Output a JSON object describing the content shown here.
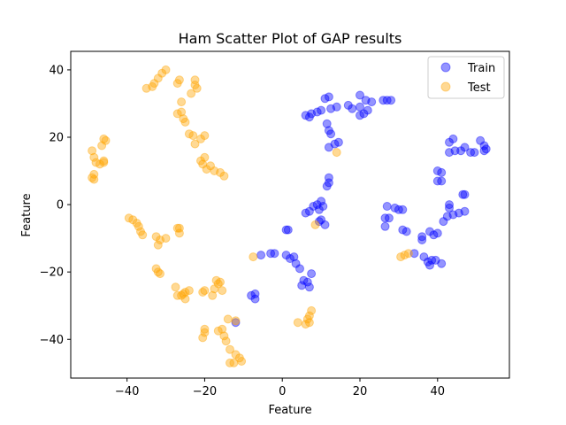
{
  "chart_data": {
    "type": "scatter",
    "title": "Ham Scatter Plot of GAP results",
    "xlabel": "Feature",
    "ylabel": "Feature",
    "xlim": [
      -54.5,
      58.5
    ],
    "ylim": [
      -51.5,
      45.5
    ],
    "xticks": [
      -40,
      -20,
      0,
      20,
      40
    ],
    "yticks": [
      -40,
      -20,
      0,
      20,
      40
    ],
    "x_tick_labels": [
      "−40",
      "−20",
      "0",
      "20",
      "40"
    ],
    "y_tick_labels": [
      "−40",
      "−20",
      "0",
      "20",
      "40"
    ],
    "grid": false,
    "legend_position": "top-right",
    "series": [
      {
        "name": "Train",
        "color": "#0000ff",
        "points": [
          [
            6.0,
            26.5
          ],
          [
            7.5,
            27.0
          ],
          [
            7.0,
            26.0
          ],
          [
            9.0,
            27.5
          ],
          [
            10.0,
            28.0
          ],
          [
            11.0,
            31.5
          ],
          [
            12.0,
            32.0
          ],
          [
            12.5,
            28.5
          ],
          [
            14.0,
            29.0
          ],
          [
            11.5,
            24.0
          ],
          [
            12.0,
            22.0
          ],
          [
            12.5,
            21.0
          ],
          [
            12.0,
            17.0
          ],
          [
            13.5,
            18.0
          ],
          [
            14.5,
            18.5
          ],
          [
            17.0,
            29.5
          ],
          [
            18.0,
            28.5
          ],
          [
            20.0,
            32.5
          ],
          [
            20.0,
            29.0
          ],
          [
            21.5,
            31.0
          ],
          [
            23.0,
            30.5
          ],
          [
            20.0,
            26.5
          ],
          [
            21.0,
            27.0
          ],
          [
            22.0,
            28.0
          ],
          [
            26.0,
            31.0
          ],
          [
            27.0,
            31.0
          ],
          [
            28.0,
            31.0
          ],
          [
            43.0,
            18.5
          ],
          [
            44.0,
            19.5
          ],
          [
            43.0,
            15.5
          ],
          [
            44.5,
            16.0
          ],
          [
            46.0,
            16.0
          ],
          [
            47.0,
            17.0
          ],
          [
            48.5,
            15.5
          ],
          [
            49.5,
            15.5
          ],
          [
            51.0,
            19.0
          ],
          [
            52.0,
            17.5
          ],
          [
            52.5,
            16.5
          ],
          [
            52.0,
            16.0
          ],
          [
            40.0,
            10.0
          ],
          [
            41.0,
            9.5
          ],
          [
            40.0,
            7.0
          ],
          [
            41.0,
            7.0
          ],
          [
            46.5,
            3.0
          ],
          [
            47.0,
            3.0
          ],
          [
            43.0,
            0.0
          ],
          [
            43.0,
            -1.0
          ],
          [
            42.5,
            -3.5
          ],
          [
            41.5,
            -5.0
          ],
          [
            44.0,
            -3.0
          ],
          [
            45.5,
            -2.5
          ],
          [
            47.0,
            -2.0
          ],
          [
            27.0,
            -0.5
          ],
          [
            29.0,
            -1.0
          ],
          [
            30.0,
            -1.5
          ],
          [
            31.0,
            -1.5
          ],
          [
            26.5,
            -4.0
          ],
          [
            27.5,
            -4.0
          ],
          [
            26.5,
            -6.5
          ],
          [
            31.0,
            -7.5
          ],
          [
            32.0,
            -8.0
          ],
          [
            34.0,
            -14.5
          ],
          [
            36.0,
            -9.5
          ],
          [
            36.0,
            -10.5
          ],
          [
            38.0,
            -8.0
          ],
          [
            39.0,
            -9.0
          ],
          [
            40.0,
            -8.5
          ],
          [
            36.5,
            -15.5
          ],
          [
            37.5,
            -17.0
          ],
          [
            38.0,
            -18.0
          ],
          [
            38.5,
            -16.5
          ],
          [
            39.5,
            -16.5
          ],
          [
            41.0,
            -17.5
          ],
          [
            12.0,
            8.0
          ],
          [
            12.0,
            6.5
          ],
          [
            11.5,
            5.5
          ],
          [
            9.0,
            0.0
          ],
          [
            10.0,
            1.0
          ],
          [
            10.5,
            -0.5
          ],
          [
            9.5,
            -1.5
          ],
          [
            8.0,
            -0.5
          ],
          [
            7.0,
            -2.0
          ],
          [
            6.0,
            -2.5
          ],
          [
            10.0,
            -4.5
          ],
          [
            11.0,
            -6.0
          ],
          [
            9.5,
            -5.0
          ],
          [
            1.0,
            -7.5
          ],
          [
            1.5,
            -7.5
          ],
          [
            1.0,
            -15.0
          ],
          [
            2.0,
            -16.0
          ],
          [
            3.0,
            -15.5
          ],
          [
            3.5,
            -17.5
          ],
          [
            4.5,
            -19.0
          ],
          [
            5.5,
            -22.5
          ],
          [
            7.5,
            -20.5
          ],
          [
            5.0,
            -24.0
          ],
          [
            6.5,
            -23.0
          ],
          [
            7.0,
            -24.5
          ],
          [
            -2.0,
            -14.5
          ],
          [
            -3.0,
            -14.5
          ],
          [
            -5.5,
            -15.0
          ],
          [
            -8.0,
            -27.0
          ],
          [
            -7.0,
            -26.5
          ],
          [
            -7.0,
            -28.0
          ],
          [
            -12.0,
            -35.0
          ]
        ]
      },
      {
        "name": "Test",
        "color": "#ffa500",
        "points": [
          [
            -30.0,
            40.0
          ],
          [
            -31.0,
            39.0
          ],
          [
            -32.0,
            37.5
          ],
          [
            -33.0,
            36.0
          ],
          [
            -33.5,
            35.0
          ],
          [
            -35.0,
            34.5
          ],
          [
            -26.5,
            37.0
          ],
          [
            -27.0,
            36.0
          ],
          [
            -22.5,
            37.0
          ],
          [
            -22.5,
            35.5
          ],
          [
            -22.0,
            34.5
          ],
          [
            -23.5,
            33.0
          ],
          [
            -26.0,
            30.5
          ],
          [
            -27.0,
            27.0
          ],
          [
            -26.0,
            27.5
          ],
          [
            -25.5,
            25.5
          ],
          [
            -25.0,
            24.5
          ],
          [
            -24.0,
            21.0
          ],
          [
            -23.0,
            20.5
          ],
          [
            -21.0,
            19.5
          ],
          [
            -20.0,
            20.5
          ],
          [
            -22.5,
            18.0
          ],
          [
            -21.0,
            13.0
          ],
          [
            -20.0,
            14.0
          ],
          [
            -20.5,
            12.0
          ],
          [
            -19.5,
            10.5
          ],
          [
            -18.5,
            11.5
          ],
          [
            -17.5,
            10.0
          ],
          [
            -16.0,
            9.5
          ],
          [
            -15.0,
            8.5
          ],
          [
            -46.0,
            19.5
          ],
          [
            -45.5,
            19.0
          ],
          [
            -46.5,
            17.5
          ],
          [
            -49.0,
            16.0
          ],
          [
            -48.5,
            14.0
          ],
          [
            -48.0,
            12.5
          ],
          [
            -47.0,
            12.0
          ],
          [
            -46.0,
            13.0
          ],
          [
            -46.0,
            12.5
          ],
          [
            -48.5,
            9.0
          ],
          [
            -49.0,
            8.0
          ],
          [
            -48.5,
            7.5
          ],
          [
            -39.5,
            -4.0
          ],
          [
            -38.5,
            -4.5
          ],
          [
            -37.5,
            -5.5
          ],
          [
            -37.0,
            -6.5
          ],
          [
            -36.5,
            -8.0
          ],
          [
            -36.0,
            -9.0
          ],
          [
            -32.5,
            -9.5
          ],
          [
            -31.5,
            -10.5
          ],
          [
            -30.0,
            -10.0
          ],
          [
            -32.0,
            -12.0
          ],
          [
            -27.0,
            -7.0
          ],
          [
            -26.5,
            -8.5
          ],
          [
            -26.5,
            -7.0
          ],
          [
            -32.5,
            -19.0
          ],
          [
            -32.0,
            -20.0
          ],
          [
            -31.5,
            -20.5
          ],
          [
            -27.5,
            -24.5
          ],
          [
            -27.0,
            -27.0
          ],
          [
            -26.0,
            -27.0
          ],
          [
            -25.5,
            -26.5
          ],
          [
            -25.0,
            -26.0
          ],
          [
            -24.0,
            -25.5
          ],
          [
            -25.0,
            -28.0
          ],
          [
            -20.5,
            -26.0
          ],
          [
            -20.0,
            -25.5
          ],
          [
            -18.0,
            -27.0
          ],
          [
            -17.5,
            -25.0
          ],
          [
            -17.0,
            -22.5
          ],
          [
            -16.0,
            -23.0
          ],
          [
            -16.5,
            -23.5
          ],
          [
            -15.5,
            -25.5
          ],
          [
            -14.0,
            -34.0
          ],
          [
            -12.0,
            -34.5
          ],
          [
            -16.5,
            -37.5
          ],
          [
            -15.5,
            -37.0
          ],
          [
            -15.0,
            -39.0
          ],
          [
            -14.5,
            -40.5
          ],
          [
            -20.5,
            -39.5
          ],
          [
            -20.0,
            -38.0
          ],
          [
            -20.0,
            -37.0
          ],
          [
            -13.5,
            -43.0
          ],
          [
            -12.0,
            -44.5
          ],
          [
            -11.0,
            -45.5
          ],
          [
            -10.5,
            -46.5
          ],
          [
            -12.5,
            -47.0
          ],
          [
            -13.5,
            -47.0
          ],
          [
            -7.5,
            -15.5
          ],
          [
            8.5,
            -6.0
          ],
          [
            14.0,
            15.5
          ],
          [
            7.5,
            -31.5
          ],
          [
            7.0,
            -33.0
          ],
          [
            6.5,
            -34.0
          ],
          [
            6.0,
            -35.5
          ],
          [
            7.0,
            -35.0
          ],
          [
            4.0,
            -35.0
          ],
          [
            30.5,
            -15.5
          ],
          [
            31.5,
            -15.0
          ],
          [
            32.5,
            -14.5
          ]
        ]
      }
    ]
  }
}
